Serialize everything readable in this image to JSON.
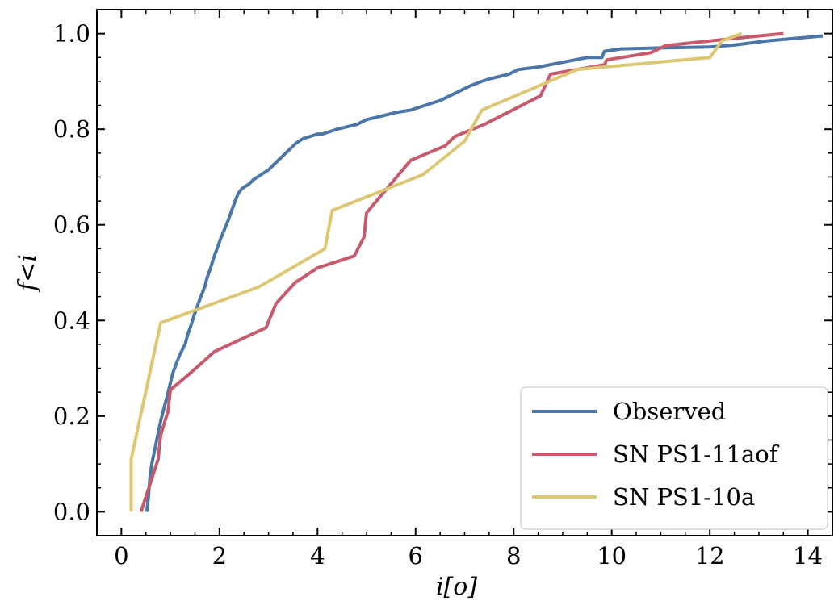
{
  "chart_data": {
    "type": "line",
    "xlabel": "i[o]",
    "ylabel": "f<i",
    "xlim": [
      -0.5,
      14.5
    ],
    "ylim": [
      -0.05,
      1.05
    ],
    "x_ticks": [
      0,
      2,
      4,
      6,
      8,
      10,
      12,
      14
    ],
    "x_tick_labels": [
      "0",
      "2",
      "4",
      "6",
      "8",
      "10",
      "12",
      "14"
    ],
    "y_ticks": [
      0.0,
      0.2,
      0.4,
      0.6,
      0.8,
      1.0
    ],
    "y_tick_labels": [
      "0.0",
      "0.2",
      "0.4",
      "0.6",
      "0.8",
      "1.0"
    ],
    "grid": false,
    "legend_position": "lower-right",
    "series": [
      {
        "name": "Observed",
        "color": "#4a76a8",
        "x": [
          0.52,
          0.55,
          0.58,
          0.62,
          0.68,
          0.72,
          0.78,
          0.85,
          0.93,
          1.0,
          1.05,
          1.12,
          1.2,
          1.3,
          1.35,
          1.42,
          1.48,
          1.55,
          1.62,
          1.7,
          1.75,
          1.82,
          1.88,
          1.95,
          2.02,
          2.1,
          2.18,
          2.25,
          2.32,
          2.38,
          2.45,
          2.52,
          2.6,
          2.7,
          2.85,
          3.0,
          3.1,
          3.25,
          3.4,
          3.55,
          3.7,
          3.85,
          4.0,
          4.1,
          4.25,
          4.4,
          4.6,
          4.8,
          5.0,
          5.2,
          5.4,
          5.6,
          5.9,
          6.2,
          6.5,
          6.7,
          6.9,
          7.1,
          7.35,
          7.5,
          7.7,
          7.9,
          8.1,
          8.5,
          9.0,
          9.5,
          9.8,
          9.85,
          10.2,
          11.0,
          12.0,
          12.5,
          13.2,
          14.3
        ],
        "y": [
          0.0,
          0.03,
          0.07,
          0.1,
          0.13,
          0.15,
          0.18,
          0.21,
          0.24,
          0.27,
          0.29,
          0.31,
          0.33,
          0.35,
          0.37,
          0.39,
          0.41,
          0.43,
          0.45,
          0.47,
          0.49,
          0.51,
          0.53,
          0.55,
          0.57,
          0.59,
          0.61,
          0.63,
          0.65,
          0.665,
          0.675,
          0.68,
          0.685,
          0.695,
          0.705,
          0.715,
          0.725,
          0.74,
          0.755,
          0.77,
          0.78,
          0.785,
          0.79,
          0.79,
          0.795,
          0.8,
          0.805,
          0.81,
          0.82,
          0.825,
          0.83,
          0.835,
          0.84,
          0.85,
          0.86,
          0.87,
          0.88,
          0.89,
          0.9,
          0.905,
          0.91,
          0.915,
          0.925,
          0.93,
          0.94,
          0.95,
          0.95,
          0.963,
          0.968,
          0.97,
          0.972,
          0.976,
          0.985,
          0.995
        ]
      },
      {
        "name": "SN PS1-11aof",
        "color": "#c85a6e",
        "x": [
          0.4,
          0.75,
          0.8,
          0.95,
          1.0,
          1.35,
          1.9,
          2.95,
          3.15,
          3.55,
          4.0,
          4.75,
          4.95,
          5.0,
          5.9,
          6.6,
          6.8,
          7.4,
          8.55,
          8.75,
          9.85,
          9.9,
          10.8,
          11.1,
          12.5,
          13.5
        ],
        "y": [
          0.0,
          0.11,
          0.16,
          0.21,
          0.255,
          0.285,
          0.335,
          0.385,
          0.435,
          0.48,
          0.51,
          0.535,
          0.575,
          0.625,
          0.735,
          0.765,
          0.785,
          0.81,
          0.87,
          0.915,
          0.935,
          0.945,
          0.96,
          0.975,
          0.99,
          1.0
        ]
      },
      {
        "name": "SN PS1-10a",
        "color": "#dcc874",
        "x": [
          0.2,
          0.2,
          0.8,
          2.8,
          4.15,
          4.3,
          6.15,
          7.0,
          7.35,
          9.3,
          12.0,
          12.25,
          12.65
        ],
        "y": [
          0.0,
          0.11,
          0.395,
          0.47,
          0.55,
          0.63,
          0.705,
          0.775,
          0.84,
          0.925,
          0.95,
          0.985,
          1.0
        ]
      }
    ]
  }
}
